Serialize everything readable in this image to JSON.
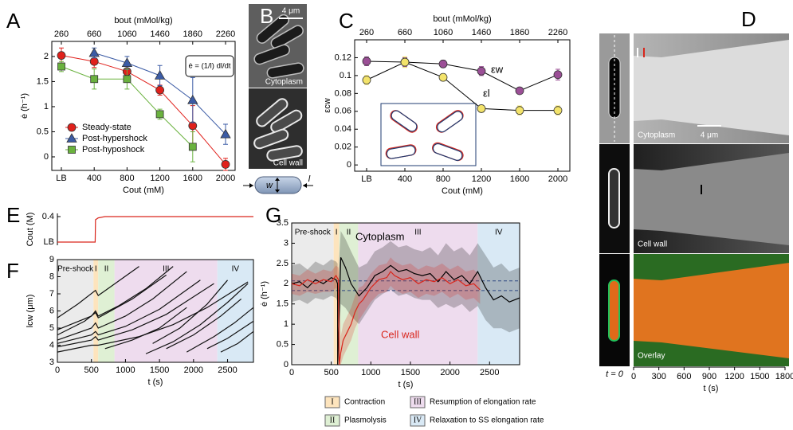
{
  "chart_data": [
    {
      "type": "line",
      "label": "A",
      "categories": [
        "LB",
        "400",
        "800",
        "1200",
        "1600",
        "2000"
      ],
      "top_categories": [
        "260",
        "660",
        "1060",
        "1460",
        "1860",
        "2260"
      ],
      "top_label": "bout (mMol/kg)",
      "xlabel": "Cout (mM)",
      "ylabel": "ė (h⁻¹)",
      "ylim": [
        -0.27,
        2.3
      ],
      "yticks": [
        0,
        0.5,
        1,
        1.5,
        2
      ],
      "annotation": "ė = (1/l) dl/dt",
      "legend": true,
      "series": [
        {
          "name": "Steady-state",
          "color": "#e0201b",
          "marker": "circle",
          "values": [
            2.02,
            1.9,
            1.7,
            1.33,
            0.62,
            -0.15
          ],
          "errors": [
            0.15,
            0.12,
            0.1,
            0.1,
            0.4,
            0.12
          ]
        },
        {
          "name": "Post-hypershock",
          "color": "#3b5ba5",
          "marker": "triangle",
          "values": [
            null,
            2.07,
            1.87,
            1.62,
            1.13,
            0.45
          ],
          "errors": [
            null,
            0.1,
            0.13,
            0.2,
            0.45,
            0.2
          ]
        },
        {
          "name": "Post-hyposhock",
          "color": "#6ab23e",
          "marker": "square",
          "values": [
            1.8,
            1.55,
            1.55,
            0.85,
            0.2,
            null
          ],
          "errors": [
            0.1,
            0.2,
            0.2,
            0.1,
            0.3,
            null
          ]
        }
      ]
    },
    {
      "type": "line",
      "label": "C",
      "categories": [
        "LB",
        "400",
        "800",
        "1200",
        "1600",
        "2000"
      ],
      "top_categories": [
        "260",
        "660",
        "1060",
        "1460",
        "1860",
        "2260"
      ],
      "top_label": "bout (mMol/kg)",
      "xlabel": "Cout (mM)",
      "ylabel": "εcw",
      "ylim": [
        -0.007,
        0.14
      ],
      "yticks": [
        0,
        0.02,
        0.04,
        0.06,
        0.08,
        0.1,
        0.12
      ],
      "line_color": "#000000",
      "legend": false,
      "series": [
        {
          "name": "εw",
          "color": "#9b4f96",
          "marker": "circle",
          "values": [
            0.116,
            0.115,
            0.113,
            0.105,
            0.083,
            0.101
          ],
          "errors": [
            0.005,
            0.005,
            0.004,
            0.005,
            0.003,
            0.006
          ]
        },
        {
          "name": "εl",
          "color": "#f3e36a",
          "marker": "circle",
          "values": [
            0.095,
            0.115,
            0.098,
            0.063,
            0.061,
            0.061
          ],
          "errors": [
            0.005,
            0.006,
            0.004,
            0.004,
            0.005,
            0.005
          ]
        }
      ]
    },
    {
      "type": "line",
      "label": "E",
      "ylabel": "Cout (M)",
      "xlim": [
        0,
        2880
      ],
      "ylim": [
        -0.05,
        0.45
      ],
      "yticks": [
        {
          "value": 0,
          "label": "LB"
        },
        0.4
      ],
      "series": [
        {
          "color": "#d9261c",
          "x": [
            0,
            555,
            560,
            600,
            700,
            2880
          ],
          "values": [
            0,
            0,
            0.35,
            0.38,
            0.4,
            0.4
          ]
        }
      ]
    },
    {
      "type": "line",
      "label": "F",
      "xlabel": "t (s)",
      "ylabel": "lcw (μm)",
      "xlim": [
        0,
        2880
      ],
      "xticks": [
        0,
        500,
        1000,
        1500,
        2000,
        2500
      ],
      "ylim": [
        3,
        9
      ],
      "yticks": [
        3,
        4,
        5,
        6,
        7,
        8,
        9
      ],
      "line_color": "#111111",
      "phases": [
        {
          "label": "Pre-shock",
          "start": 0,
          "end": 530,
          "color": "#ebebeb"
        },
        {
          "label": "I",
          "start": 530,
          "end": 600,
          "color": "#fde4bd"
        },
        {
          "label": "II",
          "start": 600,
          "end": 840,
          "color": "#dff0d4"
        },
        {
          "label": "III",
          "start": 840,
          "end": 2350,
          "color": "#eedcee"
        },
        {
          "label": "IV",
          "start": 2350,
          "end": 2880,
          "color": "#d9e9f5"
        }
      ],
      "series": [
        {
          "x": [
            0,
            500,
            560,
            600,
            900,
            1300,
            1700
          ],
          "values": [
            4.9,
            5.7,
            6.0,
            5.7,
            6.3,
            7.3,
            8.6
          ]
        },
        {
          "x": [
            0,
            500,
            560,
            600,
            1000,
            1400,
            1900
          ],
          "values": [
            4.3,
            5.0,
            5.3,
            5.0,
            5.7,
            6.7,
            8.3
          ]
        },
        {
          "x": [
            0,
            500,
            560,
            600,
            1000,
            1500,
            2100
          ],
          "values": [
            4.1,
            4.6,
            4.8,
            4.6,
            5.1,
            6.1,
            7.8
          ]
        },
        {
          "x": [
            0,
            500,
            560,
            600,
            1100,
            1600,
            2300
          ],
          "values": [
            3.9,
            4.3,
            4.5,
            4.3,
            4.9,
            5.8,
            7.6
          ]
        },
        {
          "x": [
            0,
            300,
            560,
            600,
            1200
          ],
          "values": [
            5.6,
            6.4,
            7.2,
            6.9,
            8.6
          ]
        },
        {
          "x": [
            0,
            400,
            560,
            600,
            1100,
            1600
          ],
          "values": [
            4.6,
            5.4,
            5.9,
            5.6,
            6.7,
            8.1
          ]
        },
        {
          "x": [
            0,
            500,
            600,
            1200,
            1700,
            2200,
            2800
          ],
          "values": [
            3.6,
            4.0,
            4.0,
            4.5,
            5.2,
            6.2,
            7.7
          ]
        },
        {
          "x": [
            700,
            1100,
            1500,
            1900
          ],
          "values": [
            3.8,
            4.3,
            5.0,
            6.2
          ]
        },
        {
          "x": [
            1300,
            1700,
            2100,
            2500,
            2800
          ],
          "values": [
            3.5,
            4.2,
            5.2,
            6.5,
            7.6
          ]
        },
        {
          "x": [
            1600,
            2000,
            2400,
            2700
          ],
          "values": [
            3.8,
            4.6,
            5.7,
            6.7
          ]
        },
        {
          "x": [
            1900,
            2300,
            2600,
            2880
          ],
          "values": [
            3.6,
            4.5,
            5.3,
            6.2
          ]
        },
        {
          "x": [
            2200,
            2500,
            2880
          ],
          "values": [
            3.8,
            4.4,
            5.4
          ]
        },
        {
          "x": [
            2400,
            2650,
            2880
          ],
          "values": [
            3.6,
            4.1,
            4.8
          ]
        },
        {
          "x": [
            1400,
            1800,
            2200,
            2500
          ],
          "values": [
            4.1,
            5.0,
            6.4,
            7.8
          ]
        }
      ]
    },
    {
      "type": "line",
      "label": "G",
      "xlabel": "t (s)",
      "ylabel": "ė (h⁻¹)",
      "xlim": [
        0,
        2880
      ],
      "xticks": [
        0,
        500,
        1000,
        1500,
        2000,
        2500
      ],
      "ylim": [
        0,
        3.5
      ],
      "yticks": [
        0,
        0.5,
        1,
        1.5,
        2,
        2.5,
        3,
        3.5
      ],
      "hlines": [
        2.07,
        1.83
      ],
      "hline_color": "#3b5ba5",
      "phases": [
        {
          "label": "Pre-shock",
          "start": 0,
          "end": 530,
          "color": "#ebebeb"
        },
        {
          "label": "I",
          "start": 530,
          "end": 600,
          "color": "#fde4bd"
        },
        {
          "label": "II",
          "start": 600,
          "end": 840,
          "color": "#dff0d4"
        },
        {
          "label": "III",
          "start": 840,
          "end": 2350,
          "color": "#eedcee"
        },
        {
          "label": "IV",
          "start": 2350,
          "end": 2880,
          "color": "#d9e9f5"
        }
      ],
      "series": [
        {
          "name": "Cytoplasm",
          "color": "#000000",
          "x": [
            0,
            100,
            200,
            300,
            400,
            500,
            560,
            580,
            581,
            620,
            680,
            750,
            850,
            950,
            1050,
            1150,
            1250,
            1350,
            1450,
            1550,
            1650,
            1750,
            1850,
            1950,
            2050,
            2150,
            2250,
            2350,
            2450,
            2550,
            2650,
            2750,
            2880
          ],
          "values": [
            2.0,
            2.05,
            1.9,
            2.1,
            2.0,
            2.15,
            2.1,
            2.0,
            0,
            2.65,
            2.4,
            2.0,
            1.7,
            1.9,
            2.2,
            2.3,
            2.45,
            2.3,
            2.35,
            2.25,
            2.2,
            2.25,
            2.05,
            2.3,
            2.1,
            2.2,
            2.0,
            2.3,
            1.9,
            1.6,
            1.7,
            1.55,
            1.65
          ],
          "lower": [
            1.55,
            1.6,
            1.5,
            1.65,
            1.6,
            1.7,
            1.65,
            1.55,
            0,
            1.5,
            1.4,
            1.2,
            1.0,
            1.3,
            1.6,
            1.75,
            1.85,
            1.7,
            1.75,
            1.65,
            1.6,
            1.6,
            1.4,
            1.5,
            1.4,
            1.5,
            1.3,
            1.45,
            1.1,
            0.9,
            0.9,
            0.8,
            0.9
          ],
          "upper": [
            2.45,
            2.5,
            2.35,
            2.55,
            2.45,
            2.6,
            2.55,
            2.5,
            2.0,
            3.3,
            3.1,
            2.8,
            2.4,
            2.5,
            2.8,
            2.9,
            3.05,
            2.9,
            2.95,
            2.85,
            2.8,
            2.9,
            2.7,
            3.0,
            2.8,
            2.9,
            2.7,
            3.0,
            2.7,
            2.4,
            2.5,
            2.3,
            2.4
          ]
        },
        {
          "name": "Cell wall",
          "color": "#d9261c",
          "x": [
            0,
            100,
            200,
            300,
            400,
            500,
            560,
            590,
            600,
            620,
            650,
            700,
            750,
            800,
            850,
            900,
            950,
            1000,
            1100,
            1200,
            1250,
            1300,
            1400,
            1500,
            1600,
            1700,
            1800,
            1900,
            2000,
            2100,
            2200,
            2300,
            2380
          ],
          "values": [
            2.0,
            1.95,
            2.1,
            2.0,
            2.1,
            2.05,
            2.2,
            2.1,
            0,
            0.3,
            0.6,
            0.8,
            1.0,
            1.3,
            1.5,
            1.6,
            1.75,
            1.9,
            2.1,
            2.15,
            2.3,
            2.2,
            2.1,
            2.15,
            2.0,
            2.1,
            2.05,
            2.15,
            2.0,
            2.1,
            1.95,
            2.0,
            1.85
          ],
          "lower": [
            1.75,
            1.7,
            1.8,
            1.75,
            1.8,
            1.8,
            1.9,
            1.8,
            0,
            0,
            0.2,
            0.4,
            0.6,
            0.9,
            1.1,
            1.25,
            1.4,
            1.55,
            1.75,
            1.8,
            1.95,
            1.85,
            1.75,
            1.8,
            1.65,
            1.75,
            1.7,
            1.8,
            1.65,
            1.75,
            1.6,
            1.65,
            1.5
          ],
          "upper": [
            2.25,
            2.2,
            2.35,
            2.25,
            2.35,
            2.3,
            2.45,
            2.4,
            2.1,
            0.7,
            1.0,
            1.2,
            1.4,
            1.7,
            1.9,
            1.95,
            2.1,
            2.25,
            2.45,
            2.5,
            2.65,
            2.55,
            2.45,
            2.5,
            2.35,
            2.45,
            2.4,
            2.5,
            2.35,
            2.45,
            2.3,
            2.35,
            2.2
          ]
        }
      ],
      "phase_legend": [
        {
          "numeral": "I",
          "text": "Contraction",
          "color": "#fde4bd"
        },
        {
          "numeral": "II",
          "text": "Plasmolysis",
          "color": "#dff0d4"
        },
        {
          "numeral": "III",
          "text": "Resumption of elongation rate",
          "color": "#eedcee"
        },
        {
          "numeral": "IV",
          "text": "Relaxation to SS elongation rate",
          "color": "#d9e9f5"
        }
      ]
    }
  ],
  "panel_B": {
    "label": "B",
    "scale_bar": "4 μm",
    "rows": [
      "Cytoplasm",
      "Cell wall"
    ],
    "width_label": "w",
    "length_label": "l"
  },
  "panel_D": {
    "label": "D",
    "rows": [
      "Cytoplasm",
      "Cell wall",
      "Overlay"
    ],
    "scale_bar": "4 μm",
    "t0_label": "t = 0",
    "xlabel": "t (s)",
    "xlim": [
      0,
      1800
    ],
    "xticks": [
      0,
      300,
      600,
      900,
      1200,
      1500,
      1800
    ]
  }
}
